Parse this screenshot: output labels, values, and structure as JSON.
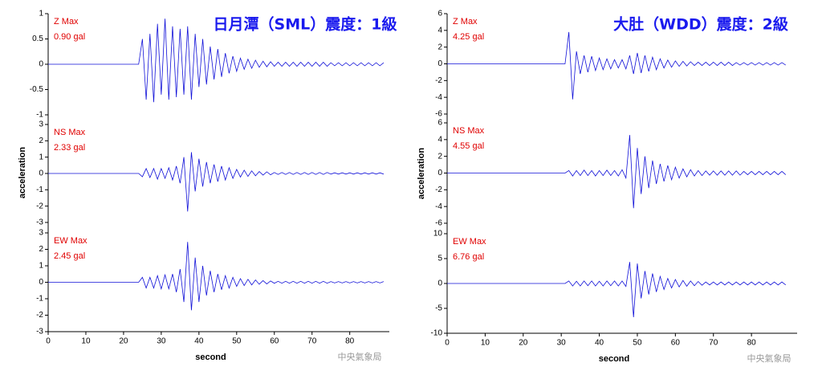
{
  "chart_data": [
    {
      "type": "line",
      "title": "日月潭（SML）震度：1級",
      "xlabel": "second",
      "ylabel": "acceleration",
      "watermark": "中央氣象局",
      "xlim": [
        0,
        90.5
      ],
      "xticks": [
        0,
        10,
        20,
        30,
        40,
        50,
        60,
        70,
        80
      ],
      "color": "#1010d8",
      "x": [
        0,
        1,
        2,
        3,
        4,
        5,
        6,
        7,
        8,
        9,
        10,
        11,
        12,
        13,
        14,
        15,
        16,
        17,
        18,
        19,
        20,
        21,
        22,
        23,
        24,
        25,
        26,
        27,
        28,
        29,
        30,
        31,
        32,
        33,
        34,
        35,
        36,
        37,
        38,
        39,
        40,
        41,
        42,
        43,
        44,
        45,
        46,
        47,
        48,
        49,
        50,
        51,
        52,
        53,
        54,
        55,
        56,
        57,
        58,
        59,
        60,
        61,
        62,
        63,
        64,
        65,
        66,
        67,
        68,
        69,
        70,
        71,
        72,
        73,
        74,
        75,
        76,
        77,
        78,
        79,
        80,
        81,
        82,
        83,
        84,
        85,
        86,
        87,
        88,
        89
      ],
      "panels": [
        {
          "label": "Z Max",
          "max_label": "0.90 gal",
          "ylim": [
            -1,
            1
          ],
          "yticks": [
            -1,
            -0.5,
            0,
            0.5,
            1
          ],
          "values": [
            0,
            0,
            0,
            0,
            0,
            0,
            0,
            0,
            0,
            0,
            0,
            0,
            0,
            0,
            0,
            0,
            0,
            0,
            0,
            0,
            0,
            0,
            0,
            0,
            0,
            0.5,
            -0.7,
            0.6,
            -0.75,
            0.8,
            -0.6,
            0.9,
            -0.7,
            0.75,
            -0.65,
            0.7,
            -0.6,
            0.75,
            -0.7,
            0.6,
            -0.45,
            0.5,
            -0.4,
            0.35,
            -0.3,
            0.3,
            -0.25,
            0.22,
            -0.18,
            0.16,
            -0.14,
            0.12,
            -0.1,
            0.1,
            -0.08,
            0.08,
            -0.06,
            0.06,
            -0.05,
            0.05,
            -0.04,
            0.04,
            -0.04,
            0.04,
            -0.04,
            0.04,
            -0.04,
            0.04,
            -0.04,
            0.04,
            -0.04,
            0.04,
            -0.04,
            0.04,
            -0.04,
            0.03,
            -0.03,
            0.03,
            -0.03,
            0.03,
            -0.03,
            0.03,
            -0.03,
            0.03,
            -0.03,
            0.03,
            -0.03,
            0.03,
            -0.03,
            0.03
          ]
        },
        {
          "label": "NS Max",
          "max_label": "2.33 gal",
          "ylim": [
            -3,
            3
          ],
          "yticks": [
            -3,
            -2,
            -1,
            0,
            1,
            2,
            3
          ],
          "values": [
            0,
            0,
            0,
            0,
            0,
            0,
            0,
            0,
            0,
            0,
            0,
            0,
            0,
            0,
            0,
            0,
            0,
            0,
            0,
            0,
            0,
            0,
            0,
            0,
            0,
            -0.2,
            0.3,
            -0.25,
            0.3,
            -0.35,
            0.3,
            -0.3,
            0.35,
            -0.4,
            0.45,
            -0.6,
            1.0,
            -2.33,
            1.3,
            -1.1,
            0.9,
            -0.8,
            0.7,
            -0.6,
            0.55,
            -0.5,
            0.45,
            -0.4,
            0.35,
            -0.3,
            0.25,
            -0.22,
            0.2,
            -0.18,
            0.16,
            -0.14,
            0.12,
            -0.1,
            0.1,
            -0.08,
            0.06,
            -0.06,
            0.06,
            -0.06,
            0.06,
            -0.06,
            0.06,
            -0.06,
            0.06,
            -0.06,
            0.06,
            -0.06,
            0.06,
            -0.06,
            0.06,
            -0.04,
            0.04,
            -0.04,
            0.04,
            -0.04,
            0.04,
            -0.04,
            0.04,
            -0.04,
            0.04,
            -0.04,
            0.04,
            -0.04,
            0.04,
            -0.04
          ]
        },
        {
          "label": "EW Max",
          "max_label": "2.45 gal",
          "ylim": [
            -3,
            3
          ],
          "yticks": [
            -3,
            -2,
            -1,
            0,
            1,
            2,
            3
          ],
          "values": [
            0,
            0,
            0,
            0,
            0,
            0,
            0,
            0,
            0,
            0,
            0,
            0,
            0,
            0,
            0,
            0,
            0,
            0,
            0,
            0,
            0,
            0,
            0,
            0,
            0,
            0.3,
            -0.35,
            0.3,
            -0.35,
            0.4,
            -0.4,
            0.45,
            -0.4,
            0.5,
            -0.6,
            0.8,
            -1.2,
            2.45,
            -1.7,
            1.5,
            -1.2,
            1.0,
            -0.8,
            0.7,
            -0.6,
            0.5,
            -0.45,
            0.4,
            -0.35,
            0.3,
            -0.25,
            0.22,
            -0.2,
            0.18,
            -0.16,
            0.14,
            -0.12,
            0.1,
            -0.1,
            0.08,
            -0.06,
            0.06,
            -0.06,
            0.06,
            -0.06,
            0.06,
            -0.06,
            0.06,
            -0.06,
            0.06,
            -0.06,
            0.06,
            -0.06,
            0.06,
            -0.06,
            0.04,
            -0.04,
            0.04,
            -0.04,
            0.04,
            -0.04,
            0.04,
            -0.04,
            0.04,
            -0.04,
            0.04,
            -0.04,
            0.04,
            -0.04,
            0.04
          ]
        }
      ]
    },
    {
      "type": "line",
      "title": "大肚（WDD）震度：2級",
      "xlabel": "second",
      "ylabel": "acceleration",
      "watermark": "中央氣象局",
      "xlim": [
        0,
        92
      ],
      "xticks": [
        0,
        10,
        20,
        30,
        40,
        50,
        60,
        70,
        80
      ],
      "color": "#1010d8",
      "x": [
        0,
        1,
        2,
        3,
        4,
        5,
        6,
        7,
        8,
        9,
        10,
        11,
        12,
        13,
        14,
        15,
        16,
        17,
        18,
        19,
        20,
        21,
        22,
        23,
        24,
        25,
        26,
        27,
        28,
        29,
        30,
        31,
        32,
        33,
        34,
        35,
        36,
        37,
        38,
        39,
        40,
        41,
        42,
        43,
        44,
        45,
        46,
        47,
        48,
        49,
        50,
        51,
        52,
        53,
        54,
        55,
        56,
        57,
        58,
        59,
        60,
        61,
        62,
        63,
        64,
        65,
        66,
        67,
        68,
        69,
        70,
        71,
        72,
        73,
        74,
        75,
        76,
        77,
        78,
        79,
        80,
        81,
        82,
        83,
        84,
        85,
        86,
        87,
        88,
        89
      ],
      "panels": [
        {
          "label": "Z Max",
          "max_label": "4.25 gal",
          "ylim": [
            -6,
            6
          ],
          "yticks": [
            -6,
            -4,
            -2,
            0,
            2,
            4,
            6
          ],
          "values": [
            0,
            0,
            0,
            0,
            0,
            0,
            0,
            0,
            0,
            0,
            0,
            0,
            0,
            0,
            0,
            0,
            0,
            0,
            0,
            0,
            0,
            0,
            0,
            0,
            0,
            0,
            0,
            0,
            0,
            0,
            0,
            0,
            3.8,
            -4.25,
            1.5,
            -1.2,
            1.0,
            -1.0,
            0.9,
            -0.8,
            0.7,
            -0.7,
            0.6,
            -0.6,
            0.5,
            -0.5,
            0.5,
            -0.6,
            1.0,
            -1.2,
            1.3,
            -1.1,
            1.0,
            -0.9,
            0.8,
            -0.7,
            0.6,
            -0.5,
            0.45,
            -0.4,
            0.35,
            -0.3,
            0.3,
            -0.25,
            0.25,
            -0.2,
            0.2,
            -0.2,
            0.2,
            -0.2,
            0.2,
            -0.2,
            0.2,
            -0.2,
            0.2,
            -0.2,
            0.15,
            -0.15,
            0.15,
            -0.15,
            0.15,
            -0.15,
            0.15,
            -0.15,
            0.15,
            -0.15,
            0.15,
            -0.15,
            0.15,
            -0.15
          ]
        },
        {
          "label": "NS Max",
          "max_label": "4.55 gal",
          "ylim": [
            -6,
            6
          ],
          "yticks": [
            -6,
            -4,
            -2,
            0,
            2,
            4,
            6
          ],
          "values": [
            0,
            0,
            0,
            0,
            0,
            0,
            0,
            0,
            0,
            0,
            0,
            0,
            0,
            0,
            0,
            0,
            0,
            0,
            0,
            0,
            0,
            0,
            0,
            0,
            0,
            0,
            0,
            0,
            0,
            0,
            0,
            0,
            0.3,
            -0.35,
            0.3,
            -0.3,
            0.35,
            -0.3,
            0.3,
            -0.35,
            0.3,
            -0.3,
            0.35,
            -0.3,
            0.3,
            -0.35,
            0.4,
            -0.6,
            4.55,
            -4.2,
            3.0,
            -2.5,
            2.0,
            -1.8,
            1.5,
            -1.3,
            1.1,
            -1.0,
            0.9,
            -0.8,
            0.7,
            -0.6,
            0.5,
            -0.45,
            0.4,
            -0.35,
            0.3,
            -0.3,
            0.25,
            -0.25,
            0.25,
            -0.25,
            0.25,
            -0.25,
            0.25,
            -0.25,
            0.25,
            -0.25,
            0.2,
            -0.2,
            0.2,
            -0.2,
            0.2,
            -0.2,
            0.2,
            -0.2,
            0.2,
            -0.2,
            0.2,
            -0.2
          ]
        },
        {
          "label": "EW Max",
          "max_label": "6.76 gal",
          "ylim": [
            -10,
            10
          ],
          "yticks": [
            -10,
            -5,
            0,
            5,
            10
          ],
          "values": [
            0,
            0,
            0,
            0,
            0,
            0,
            0,
            0,
            0,
            0,
            0,
            0,
            0,
            0,
            0,
            0,
            0,
            0,
            0,
            0,
            0,
            0,
            0,
            0,
            0,
            0,
            0,
            0,
            0,
            0,
            0,
            0,
            0.5,
            -0.5,
            0.45,
            -0.5,
            0.5,
            -0.45,
            0.5,
            -0.5,
            0.45,
            -0.5,
            0.5,
            -0.45,
            0.5,
            -0.5,
            0.5,
            -0.6,
            4.3,
            -6.76,
            4.0,
            -3.0,
            2.5,
            -2.2,
            2.0,
            -1.7,
            1.4,
            -1.2,
            1.0,
            -0.9,
            0.8,
            -0.7,
            0.6,
            -0.55,
            0.5,
            -0.45,
            0.4,
            -0.35,
            0.3,
            -0.3,
            0.3,
            -0.3,
            0.3,
            -0.3,
            0.3,
            -0.3,
            0.3,
            -0.3,
            0.3,
            -0.3,
            0.3,
            -0.3,
            0.3,
            -0.3,
            0.3,
            -0.3,
            0.3,
            -0.3,
            0.3,
            -0.3
          ]
        }
      ]
    }
  ]
}
